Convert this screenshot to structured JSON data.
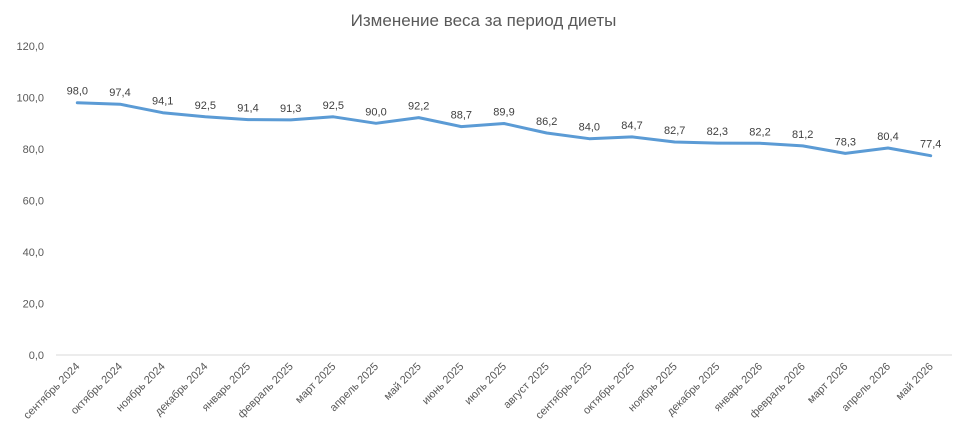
{
  "chart_data": {
    "type": "line",
    "title": "Изменение веса за период диеты",
    "xlabel": "",
    "ylabel": "",
    "ylim": [
      0,
      120
    ],
    "yticks": [
      "0,0",
      "20,0",
      "40,0",
      "60,0",
      "80,0",
      "100,0",
      "120,0"
    ],
    "grid": false,
    "legend": "none",
    "categories": [
      "сентябрь 2024",
      "октябрь 2024",
      "ноябрь 2024",
      "декабрь 2024",
      "январь 2025",
      "февраль 2025",
      "март 2025",
      "апрель 2025",
      "май 2025",
      "июнь 2025",
      "июль 2025",
      "август 2025",
      "сентябрь 2025",
      "октябрь 2025",
      "ноябрь 2025",
      "декабрь 2025",
      "январь 2026",
      "февраль 2026",
      "март 2026",
      "апрель 2026",
      "май 2026"
    ],
    "values": [
      98.0,
      97.4,
      94.1,
      92.5,
      91.4,
      91.3,
      92.5,
      90.0,
      92.2,
      88.7,
      89.9,
      86.2,
      84.0,
      84.7,
      82.7,
      82.3,
      82.2,
      81.2,
      78.3,
      80.4,
      77.4
    ],
    "data_labels": [
      "98,0",
      "97,4",
      "94,1",
      "92,5",
      "91,4",
      "91,3",
      "92,5",
      "90,0",
      "92,2",
      "88,7",
      "89,9",
      "86,2",
      "84,0",
      "84,7",
      "82,7",
      "82,3",
      "82,2",
      "81,2",
      "78,3",
      "80,4",
      "77,4"
    ],
    "colors": {
      "line": "#5B9BD5",
      "axis": "#D9D9D9",
      "text": "#595959"
    }
  }
}
